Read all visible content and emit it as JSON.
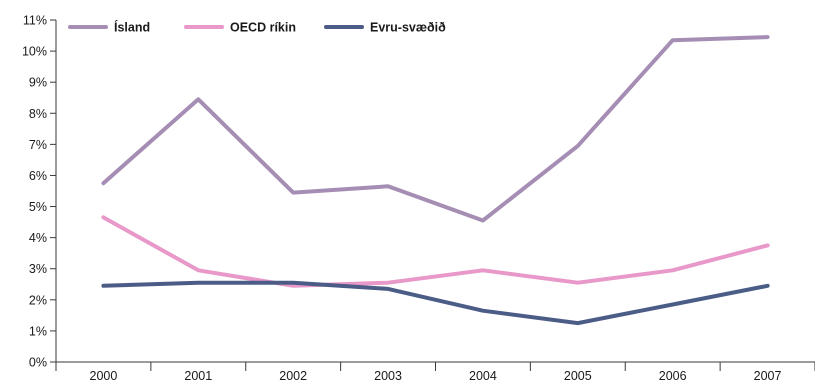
{
  "chart_data": {
    "type": "line",
    "categories": [
      "2000",
      "2001",
      "2002",
      "2003",
      "2004",
      "2005",
      "2006",
      "2007"
    ],
    "y_tick_labels": [
      "0%",
      "1%",
      "2%",
      "3%",
      "4%",
      "5%",
      "6%",
      "7%",
      "8%",
      "9%",
      "10%",
      "11%"
    ],
    "ylim": [
      0,
      11
    ],
    "y_unit": "%",
    "grid": false,
    "legend_position": "top-left",
    "series": [
      {
        "name": "Ísland",
        "color": "#a58db4",
        "values": [
          5.75,
          8.45,
          5.45,
          5.65,
          4.55,
          6.95,
          10.35,
          10.45
        ]
      },
      {
        "name": "OECD ríkin",
        "color": "#e898c9",
        "values": [
          4.65,
          2.95,
          2.45,
          2.55,
          2.95,
          2.55,
          2.95,
          3.75
        ]
      },
      {
        "name": "Evru-svæðið",
        "color": "#4b5d86",
        "values": [
          2.45,
          2.55,
          2.55,
          2.35,
          1.65,
          1.25,
          1.85,
          2.45
        ]
      }
    ]
  }
}
